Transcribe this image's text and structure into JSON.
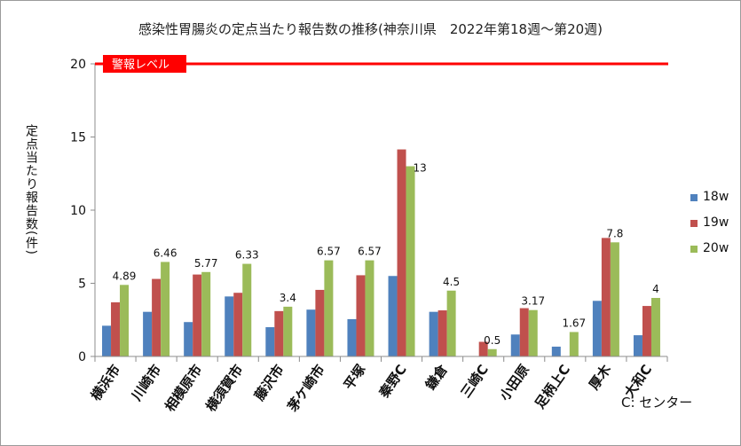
{
  "chart_data": {
    "type": "bar",
    "title": "感染性胃腸炎の定点当たり報告数の推移(神奈川県　2022年第18週～第20週)",
    "ylabel": "定点当たり報告数(件)",
    "ylim": [
      0,
      20
    ],
    "yticks": [
      "0",
      "5",
      "10",
      "15",
      "20"
    ],
    "ytick_values": [
      0,
      5,
      10,
      15,
      20
    ],
    "grid": false,
    "legend_position": "right",
    "categories": [
      "横浜市",
      "川崎市",
      "相模原市",
      "横須賀市",
      "藤沢市",
      "茅ケ崎市",
      "平塚",
      "秦野C",
      "鎌倉",
      "三崎C",
      "小田原",
      "足柄上C",
      "厚木",
      "大和C"
    ],
    "series": [
      {
        "name": "18w",
        "color": "#4f81bd",
        "values": [
          2.1,
          3.05,
          2.35,
          4.1,
          2.0,
          3.2,
          2.55,
          5.5,
          3.05,
          0,
          1.5,
          0.67,
          3.8,
          1.45
        ]
      },
      {
        "name": "19w",
        "color": "#c0504d",
        "values": [
          3.7,
          5.3,
          5.6,
          4.35,
          3.1,
          4.55,
          5.55,
          14.15,
          3.15,
          1.0,
          3.3,
          0,
          8.1,
          3.45
        ]
      },
      {
        "name": "20w",
        "color": "#9bbb59",
        "values": [
          4.89,
          6.46,
          5.77,
          6.33,
          3.4,
          6.57,
          6.57,
          13,
          4.5,
          0.5,
          3.17,
          1.67,
          7.8,
          4
        ]
      }
    ],
    "data_labels": [
      "4.89",
      "6.46",
      "5.77",
      "6.33",
      "3.4",
      "6.57",
      "6.57",
      "13",
      "4.5",
      "0.5",
      "3.17",
      "1.67",
      "7.8",
      "4"
    ],
    "threshold": {
      "value": 20,
      "label": "警報レベル",
      "color": "#ff0000"
    }
  },
  "footnote": "C: センター"
}
